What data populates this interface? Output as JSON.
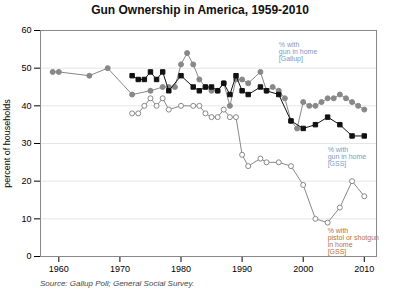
{
  "chart_data": {
    "type": "line",
    "title": "Gun Ownership in America, 1959-2010",
    "ylabel": "percent of households",
    "source": "Source: Gallup Poll; General Social Survey.",
    "xlim": [
      1957,
      2012
    ],
    "xticks": [
      1960,
      1970,
      1980,
      1990,
      2000,
      2010
    ],
    "ylim": [
      0,
      60
    ],
    "yticks": [
      0,
      10,
      20,
      30,
      40,
      50,
      60
    ],
    "grid": true,
    "series": [
      {
        "color": "#888888",
        "marker": "circle",
        "x": [
          1959,
          1960,
          1965,
          1968,
          1972,
          1975,
          1977,
          1978,
          1979,
          1980,
          1981,
          1982,
          1983,
          1984,
          1985,
          1986,
          1987,
          1988,
          1989,
          1990,
          1991,
          1993,
          1994,
          1995,
          1996,
          1997,
          1998,
          1999,
          2000,
          2001,
          2002,
          2003,
          2004,
          2005,
          2006,
          2007,
          2008,
          2009,
          2010
        ],
        "values": [
          49,
          49,
          48,
          50,
          43,
          44,
          45,
          45,
          45,
          51,
          54,
          51,
          47,
          45,
          44,
          44,
          46,
          40,
          47,
          47,
          46,
          49,
          44,
          45,
          44,
          42,
          36,
          34,
          41,
          40,
          40,
          41,
          42,
          42,
          43,
          42,
          41,
          40,
          39
        ]
      },
      {
        "color": "#111111",
        "marker": "square",
        "x": [
          1972,
          1973,
          1974,
          1975,
          1976,
          1977,
          1978,
          1980,
          1982,
          1983,
          1984,
          1985,
          1986,
          1987,
          1988,
          1989,
          1990,
          1991,
          1993,
          1994,
          1996,
          1998,
          2000,
          2002,
          2004,
          2006,
          2008,
          2010
        ],
        "values": [
          48,
          47,
          47,
          49,
          47,
          49,
          44,
          48,
          45,
          44,
          45,
          45,
          44,
          46,
          43,
          48,
          44,
          43,
          45,
          44,
          43,
          36,
          34,
          35,
          37,
          35,
          32,
          32
        ]
      },
      {
        "color": "#888888",
        "marker": "circle_open",
        "x": [
          1972,
          1973,
          1974,
          1975,
          1976,
          1977,
          1978,
          1980,
          1982,
          1983,
          1984,
          1985,
          1986,
          1987,
          1988,
          1989,
          1990,
          1991,
          1993,
          1994,
          1996,
          1998,
          2000,
          2002,
          2004,
          2006,
          2008,
          2010
        ],
        "values": [
          38,
          38,
          40,
          42,
          40,
          42,
          39,
          40,
          40,
          40,
          38,
          37,
          37,
          39,
          37,
          37,
          27,
          24,
          26,
          25,
          25,
          24,
          19,
          10,
          9,
          13,
          20,
          16
        ]
      }
    ],
    "annotations": [
      {
        "text": "% with\ngun in home\n[Gallup]",
        "x": 1996,
        "y": 57,
        "color": "#7a9bbf"
      },
      {
        "text": "% with\ngun in home\n[GSS]",
        "x": 2004,
        "y": 29,
        "color": "#7a9bbf"
      },
      {
        "text": "% with\npistol or shotgun\nin home\n[GSS]",
        "x": 2004,
        "y": 4,
        "color": "#c07030"
      }
    ]
  }
}
